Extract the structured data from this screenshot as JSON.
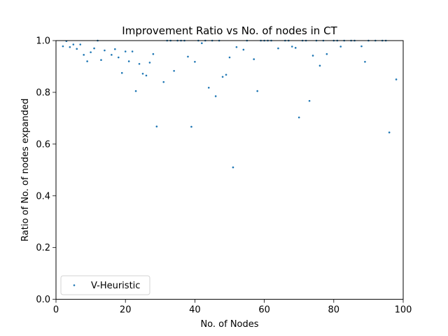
{
  "chart_data": {
    "type": "scatter",
    "title": "Improvement Ratio vs No. of nodes in CT",
    "xlabel": "No. of Nodes",
    "ylabel": "Ratio of No. of nodes expanded",
    "xlim": [
      0,
      100
    ],
    "ylim": [
      0.0,
      1.0
    ],
    "xticks": [
      "0",
      "20",
      "40",
      "60",
      "80",
      "100"
    ],
    "yticks": [
      "0.0",
      "0.2",
      "0.4",
      "0.6",
      "0.8",
      "1.0"
    ],
    "grid": false,
    "legend_position": "lower-left",
    "series": [
      {
        "name": "V-Heuristic",
        "color": "#1f77b4",
        "points": [
          [
            2,
            0.978
          ],
          [
            3,
            0.998
          ],
          [
            4,
            0.975
          ],
          [
            5,
            0.985
          ],
          [
            6,
            0.968
          ],
          [
            7,
            0.985
          ],
          [
            8,
            0.945
          ],
          [
            9,
            0.92
          ],
          [
            10,
            0.955
          ],
          [
            11,
            0.97
          ],
          [
            12,
            1.0
          ],
          [
            13,
            0.925
          ],
          [
            14,
            0.962
          ],
          [
            16,
            0.945
          ],
          [
            17,
            0.967
          ],
          [
            18,
            0.935
          ],
          [
            19,
            0.875
          ],
          [
            20,
            0.958
          ],
          [
            21,
            0.92
          ],
          [
            22,
            0.958
          ],
          [
            23,
            0.805
          ],
          [
            24,
            0.91
          ],
          [
            25,
            0.872
          ],
          [
            26,
            0.865
          ],
          [
            27,
            0.915
          ],
          [
            28,
            0.948
          ],
          [
            29,
            0.668
          ],
          [
            31,
            0.84
          ],
          [
            32,
            1.0
          ],
          [
            33,
            1.0
          ],
          [
            34,
            0.883
          ],
          [
            35,
            1.0
          ],
          [
            36,
            1.0
          ],
          [
            37,
            1.0
          ],
          [
            38,
            0.938
          ],
          [
            39,
            0.667
          ],
          [
            40,
            0.918
          ],
          [
            41,
            1.0
          ],
          [
            42,
            0.99
          ],
          [
            43,
            1.0
          ],
          [
            44,
            0.818
          ],
          [
            45,
            1.0
          ],
          [
            46,
            0.785
          ],
          [
            47,
            1.0
          ],
          [
            48,
            0.86
          ],
          [
            49,
            0.868
          ],
          [
            50,
            0.935
          ],
          [
            51,
            0.51
          ],
          [
            52,
            0.975
          ],
          [
            54,
            0.965
          ],
          [
            55,
            1.0
          ],
          [
            57,
            0.928
          ],
          [
            58,
            0.805
          ],
          [
            59,
            1.0
          ],
          [
            60,
            1.0
          ],
          [
            61,
            1.0
          ],
          [
            62,
            1.0
          ],
          [
            64,
            0.97
          ],
          [
            66,
            1.0
          ],
          [
            67,
            1.0
          ],
          [
            68,
            0.977
          ],
          [
            69,
            0.972
          ],
          [
            70,
            0.703
          ],
          [
            71,
            1.0
          ],
          [
            72,
            1.0
          ],
          [
            73,
            0.767
          ],
          [
            74,
            0.942
          ],
          [
            75,
            1.0
          ],
          [
            76,
            0.903
          ],
          [
            77,
            1.0
          ],
          [
            78,
            0.948
          ],
          [
            80,
            1.0
          ],
          [
            81,
            1.0
          ],
          [
            82,
            0.977
          ],
          [
            83,
            1.0
          ],
          [
            85,
            1.0
          ],
          [
            86,
            1.0
          ],
          [
            88,
            0.978
          ],
          [
            89,
            0.918
          ],
          [
            90,
            1.0
          ],
          [
            92,
            1.0
          ],
          [
            94,
            1.0
          ],
          [
            95,
            1.0
          ],
          [
            96,
            0.645
          ],
          [
            98,
            0.85
          ]
        ]
      }
    ]
  }
}
